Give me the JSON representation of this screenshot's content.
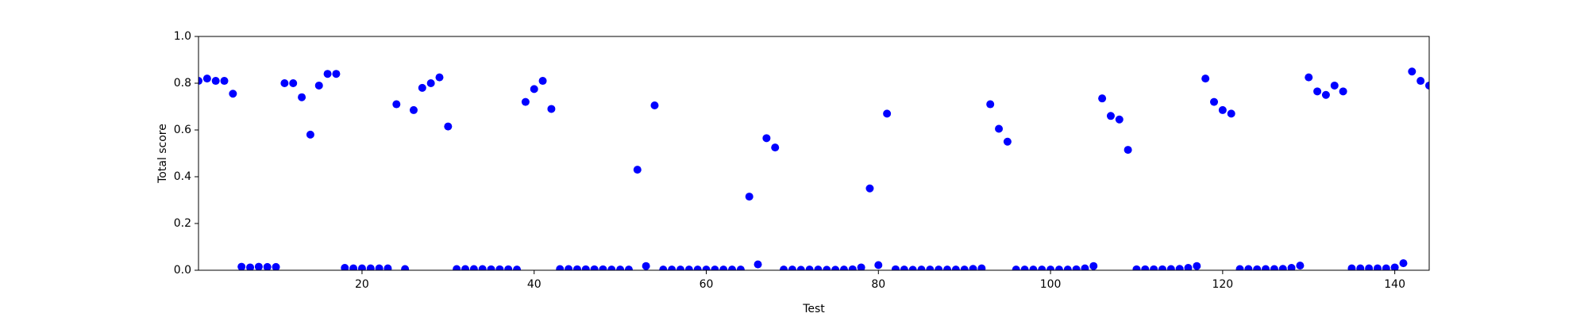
{
  "chart_data": {
    "type": "scatter",
    "xlabel": "Test",
    "ylabel": "Total score",
    "color": "#0000ff",
    "x": [
      1,
      2,
      3,
      4,
      5,
      6,
      7,
      8,
      9,
      10,
      11,
      12,
      13,
      14,
      15,
      16,
      17,
      18,
      19,
      20,
      21,
      22,
      23,
      24,
      25,
      26,
      27,
      28,
      29,
      30,
      31,
      32,
      33,
      34,
      35,
      36,
      37,
      38,
      39,
      40,
      41,
      42,
      43,
      44,
      45,
      46,
      47,
      48,
      49,
      50,
      51,
      52,
      53,
      54,
      55,
      56,
      57,
      58,
      59,
      60,
      61,
      62,
      63,
      64,
      65,
      66,
      67,
      68,
      69,
      70,
      71,
      72,
      73,
      74,
      75,
      76,
      77,
      78,
      79,
      80,
      81,
      82,
      83,
      84,
      85,
      86,
      87,
      88,
      89,
      90,
      91,
      92,
      93,
      94,
      95,
      96,
      97,
      98,
      99,
      100,
      101,
      102,
      103,
      104,
      105,
      106,
      107,
      108,
      109,
      110,
      111,
      112,
      113,
      114,
      115,
      116,
      117,
      118,
      119,
      120,
      121,
      122,
      123,
      124,
      125,
      126,
      127,
      128,
      129,
      130,
      131,
      132,
      133,
      134,
      135,
      136,
      137,
      138,
      139,
      140,
      141,
      142,
      143,
      144
    ],
    "values": [
      0.81,
      0.82,
      0.81,
      0.81,
      0.755,
      0.015,
      0.012,
      0.015,
      0.014,
      0.014,
      0.8,
      0.8,
      0.74,
      0.58,
      0.79,
      0.84,
      0.84,
      0.01,
      0.008,
      0.008,
      0.008,
      0.008,
      0.008,
      0.71,
      0.005,
      0.685,
      0.78,
      0.8,
      0.825,
      0.615,
      0.005,
      0.005,
      0.005,
      0.005,
      0.004,
      0.004,
      0.004,
      0.003,
      0.72,
      0.775,
      0.81,
      0.69,
      0.005,
      0.005,
      0.004,
      0.004,
      0.004,
      0.004,
      0.003,
      0.003,
      0.003,
      0.43,
      0.018,
      0.705,
      0.003,
      0.003,
      0.003,
      0.003,
      0.003,
      0.003,
      0.003,
      0.003,
      0.003,
      0.003,
      0.315,
      0.025,
      0.565,
      0.525,
      0.003,
      0.003,
      0.002,
      0.003,
      0.003,
      0.002,
      0.002,
      0.003,
      0.004,
      0.012,
      0.35,
      0.022,
      0.67,
      0.004,
      0.003,
      0.002,
      0.003,
      0.003,
      0.003,
      0.003,
      0.003,
      0.003,
      0.006,
      0.008,
      0.71,
      0.605,
      0.55,
      0.003,
      0.003,
      0.003,
      0.003,
      0.003,
      0.003,
      0.003,
      0.004,
      0.008,
      0.018,
      0.735,
      0.66,
      0.645,
      0.515,
      0.004,
      0.004,
      0.004,
      0.004,
      0.005,
      0.006,
      0.01,
      0.018,
      0.82,
      0.72,
      0.685,
      0.67,
      0.005,
      0.005,
      0.004,
      0.005,
      0.005,
      0.006,
      0.01,
      0.02,
      0.825,
      0.765,
      0.75,
      0.79,
      0.765,
      0.008,
      0.008,
      0.008,
      0.008,
      0.008,
      0.012,
      0.03,
      0.85,
      0.81,
      0.79
    ],
    "xlim": [
      1,
      144
    ],
    "xticks": [
      20,
      40,
      60,
      80,
      100,
      120,
      140
    ],
    "ylim": [
      0,
      1
    ],
    "yticks": [
      {
        "value": 0,
        "label": "0.0"
      },
      0.2,
      0.4,
      0.6,
      0.8,
      {
        "value": 1,
        "label": "1.0"
      }
    ]
  }
}
